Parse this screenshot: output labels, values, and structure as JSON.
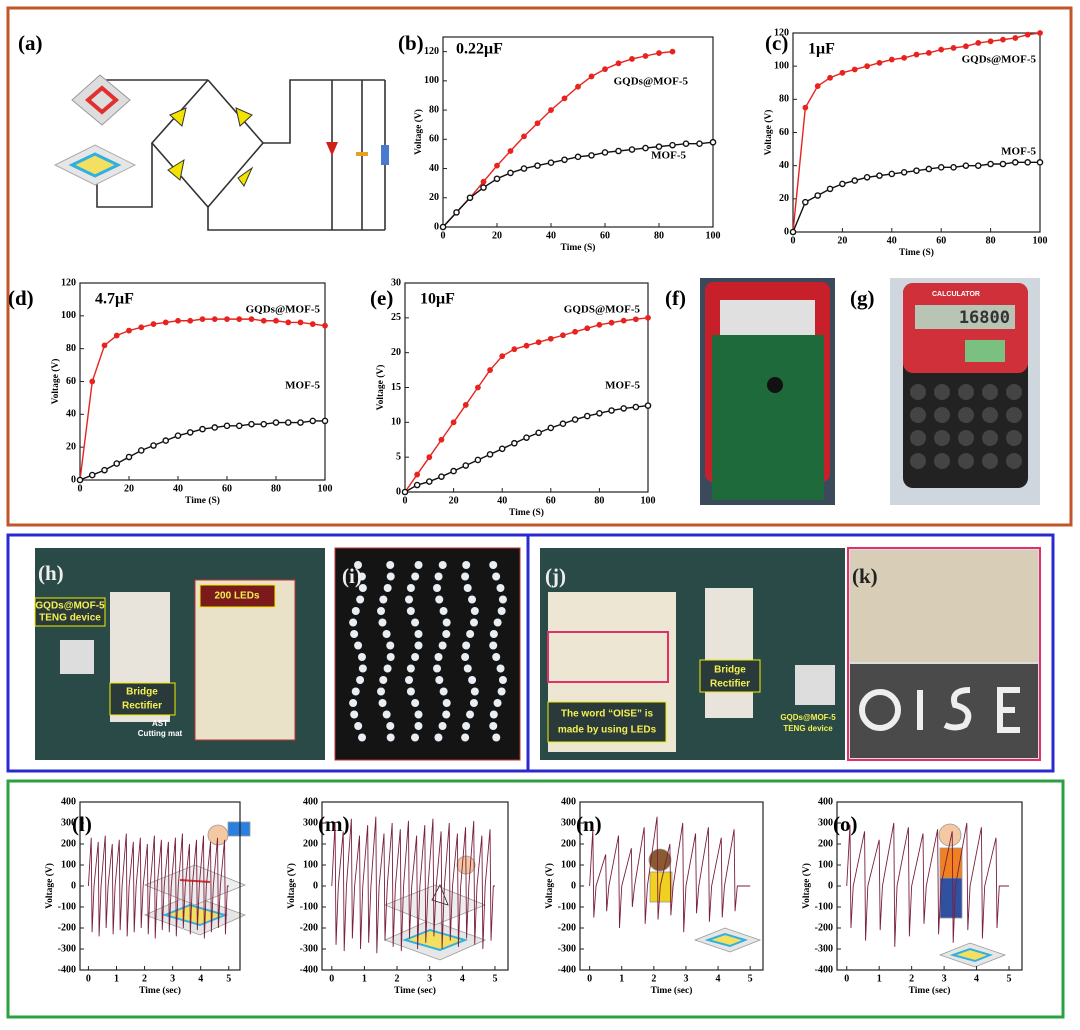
{
  "chart_data": [
    {
      "type": "line",
      "label": "(b)",
      "annotation": "0.22μF",
      "xlabel": "Time (S)",
      "ylabel": "Voltage (V)",
      "markers": true,
      "x": [
        0,
        5,
        10,
        15,
        20,
        25,
        30,
        35,
        40,
        45,
        50,
        55,
        60,
        65,
        70,
        75,
        80,
        85,
        90,
        95,
        100
      ],
      "xlim": [
        0,
        100
      ],
      "xticks": [
        0,
        20,
        40,
        60,
        80,
        100
      ],
      "ylim": [
        0,
        130
      ],
      "yticks": [
        0,
        20,
        40,
        60,
        80,
        100,
        120
      ],
      "series": [
        {
          "name": "GQDs@MOF-5",
          "color": "#e8231f",
          "values": [
            0,
            10,
            20,
            31,
            42,
            52,
            62,
            71,
            80,
            88,
            96,
            103,
            108,
            112,
            115,
            117,
            119,
            120,
            null,
            null,
            null
          ]
        },
        {
          "name": "MOF-5",
          "color": "#111111",
          "values": [
            0,
            10,
            20,
            27,
            33,
            37,
            40,
            42,
            44,
            46,
            48,
            49,
            51,
            52,
            53,
            54,
            55,
            56,
            57,
            57,
            58
          ]
        }
      ]
    },
    {
      "type": "line",
      "label": "(c)",
      "annotation": "1μF",
      "xlabel": "Time (S)",
      "ylabel": "Voltage (V)",
      "markers": true,
      "x": [
        0,
        5,
        10,
        15,
        20,
        25,
        30,
        35,
        40,
        45,
        50,
        55,
        60,
        65,
        70,
        75,
        80,
        85,
        90,
        95,
        100
      ],
      "xlim": [
        0,
        100
      ],
      "xticks": [
        0,
        20,
        40,
        60,
        80,
        100
      ],
      "ylim": [
        0,
        120
      ],
      "yticks": [
        0,
        20,
        40,
        60,
        80,
        100,
        120
      ],
      "series": [
        {
          "name": "GQDs@MOF-5",
          "color": "#e8231f",
          "values": [
            0,
            75,
            88,
            93,
            96,
            98,
            100,
            102,
            104,
            105,
            107,
            108,
            110,
            111,
            112,
            114,
            115,
            116,
            117,
            119,
            120
          ]
        },
        {
          "name": "MOF-5",
          "color": "#111111",
          "values": [
            0,
            18,
            22,
            26,
            29,
            31,
            33,
            34,
            35,
            36,
            37,
            38,
            39,
            39,
            40,
            40,
            41,
            41,
            42,
            42,
            42
          ]
        }
      ]
    },
    {
      "type": "line",
      "label": "(d)",
      "annotation": "4.7μF",
      "xlabel": "Time (S)",
      "ylabel": "Voltage (V)",
      "markers": true,
      "x": [
        0,
        5,
        10,
        15,
        20,
        25,
        30,
        35,
        40,
        45,
        50,
        55,
        60,
        65,
        70,
        75,
        80,
        85,
        90,
        95,
        100
      ],
      "xlim": [
        0,
        100
      ],
      "xticks": [
        0,
        20,
        40,
        60,
        80,
        100
      ],
      "ylim": [
        0,
        120
      ],
      "yticks": [
        0,
        20,
        40,
        60,
        80,
        100,
        120
      ],
      "series": [
        {
          "name": "GQDs@MOF-5",
          "color": "#e8231f",
          "values": [
            0,
            60,
            82,
            88,
            91,
            93,
            95,
            96,
            97,
            97,
            98,
            98,
            98,
            98,
            98,
            97,
            97,
            96,
            96,
            95,
            94
          ]
        },
        {
          "name": "MOF-5",
          "color": "#111111",
          "values": [
            0,
            3,
            6,
            10,
            14,
            18,
            21,
            24,
            27,
            29,
            31,
            32,
            33,
            33,
            34,
            34,
            35,
            35,
            35,
            36,
            36
          ]
        }
      ]
    },
    {
      "type": "line",
      "label": "(e)",
      "annotation": "10μF",
      "xlabel": "Time (S)",
      "ylabel": "Voltage (V)",
      "markers": true,
      "x": [
        0,
        5,
        10,
        15,
        20,
        25,
        30,
        35,
        40,
        45,
        50,
        55,
        60,
        65,
        70,
        75,
        80,
        85,
        90,
        95,
        100
      ],
      "xlim": [
        0,
        100
      ],
      "xticks": [
        0,
        20,
        40,
        60,
        80,
        100
      ],
      "ylim": [
        0,
        30
      ],
      "yticks": [
        0,
        5,
        10,
        15,
        20,
        25,
        30
      ],
      "series": [
        {
          "name": "GQDS@MOF-5",
          "color": "#e8231f",
          "values": [
            0,
            2.5,
            5,
            7.5,
            10,
            12.5,
            15,
            17.5,
            19.5,
            20.5,
            21,
            21.5,
            22,
            22.5,
            23,
            23.5,
            24,
            24.3,
            24.6,
            24.8,
            25
          ]
        },
        {
          "name": "MOF-5",
          "color": "#111111",
          "values": [
            0,
            1,
            1.5,
            2.2,
            3,
            3.8,
            4.6,
            5.4,
            6.2,
            7,
            7.8,
            8.5,
            9.2,
            9.8,
            10.4,
            10.9,
            11.3,
            11.7,
            12,
            12.2,
            12.4
          ]
        }
      ]
    },
    {
      "type": "line",
      "label": "(l)",
      "xlabel": "Time (sec)",
      "ylabel": "Voltage (V)",
      "markers": false,
      "x": [
        0,
        0.1,
        0.13,
        0.2,
        0.35,
        0.38,
        0.45,
        0.6,
        0.63,
        0.7,
        0.85,
        0.88,
        0.95,
        1.1,
        1.13,
        1.2,
        1.35,
        1.38,
        1.45,
        1.6,
        1.63,
        1.7,
        1.85,
        1.88,
        1.95,
        2.1,
        2.13,
        2.2,
        2.35,
        2.38,
        2.45,
        2.6,
        2.63,
        2.7,
        2.85,
        2.88,
        2.95,
        3.1,
        3.13,
        3.2,
        3.35,
        3.38,
        3.45,
        3.6,
        3.63,
        3.7,
        3.85,
        3.88,
        3.95,
        4.1,
        4.13,
        4.2,
        4.35,
        4.38,
        4.45,
        4.6,
        4.63,
        4.7,
        4.85,
        4.88,
        4.95,
        5
      ],
      "xlim": [
        -0.3,
        5.4
      ],
      "xticks": [
        0,
        1,
        2,
        3,
        4,
        5
      ],
      "ylim": [
        -400,
        400
      ],
      "yticks": [
        -400,
        -300,
        -200,
        -100,
        0,
        100,
        200,
        300,
        400
      ],
      "series": [
        {
          "color": "#7a1f3d",
          "values": [
            0,
            230,
            -220,
            0,
            210,
            -240,
            0,
            240,
            -200,
            0,
            200,
            -230,
            0,
            220,
            -210,
            0,
            250,
            -240,
            0,
            210,
            -220,
            0,
            230,
            -200,
            0,
            200,
            -230,
            0,
            240,
            -250,
            0,
            220,
            -210,
            0,
            210,
            -220,
            0,
            230,
            -240,
            0,
            250,
            -200,
            0,
            200,
            -230,
            0,
            220,
            -210,
            0,
            240,
            -250,
            0,
            210,
            -220,
            0,
            230,
            -200,
            0,
            220,
            -230,
            0,
            0
          ]
        }
      ]
    },
    {
      "type": "line",
      "label": "(m)",
      "xlabel": "Time (sec)",
      "ylabel": "Voltage (V)",
      "markers": false,
      "x": [
        0,
        0.1,
        0.13,
        0.2,
        0.35,
        0.38,
        0.45,
        0.6,
        0.63,
        0.7,
        0.85,
        0.88,
        0.95,
        1.1,
        1.13,
        1.2,
        1.35,
        1.38,
        1.45,
        1.6,
        1.63,
        1.7,
        1.85,
        1.88,
        1.95,
        2.1,
        2.13,
        2.2,
        2.35,
        2.38,
        2.45,
        2.6,
        2.63,
        2.7,
        2.85,
        2.88,
        2.95,
        3.1,
        3.13,
        3.2,
        3.35,
        3.38,
        3.45,
        3.6,
        3.63,
        3.7,
        3.85,
        3.88,
        3.95,
        4.1,
        4.13,
        4.2,
        4.35,
        4.38,
        4.45,
        4.6,
        4.63,
        4.7,
        4.85,
        4.88,
        4.95,
        5
      ],
      "xlim": [
        -0.3,
        5.4
      ],
      "xticks": [
        0,
        1,
        2,
        3,
        4,
        5
      ],
      "ylim": [
        -400,
        400
      ],
      "yticks": [
        -400,
        -300,
        -200,
        -100,
        0,
        100,
        200,
        300,
        400
      ],
      "series": [
        {
          "color": "#7a1f3d",
          "values": [
            0,
            300,
            -280,
            0,
            260,
            -310,
            0,
            320,
            -250,
            0,
            240,
            -300,
            0,
            290,
            -270,
            0,
            330,
            -320,
            0,
            250,
            -260,
            0,
            300,
            -290,
            0,
            270,
            -310,
            0,
            310,
            -250,
            0,
            240,
            -300,
            0,
            290,
            -270,
            0,
            320,
            -240,
            0,
            260,
            -300,
            0,
            300,
            -260,
            0,
            250,
            -290,
            0,
            280,
            -250,
            0,
            310,
            -280,
            0,
            240,
            -300,
            0,
            270,
            -260,
            0,
            0
          ]
        }
      ]
    },
    {
      "type": "line",
      "label": "(n)",
      "xlabel": "Time (sec)",
      "ylabel": "Voltage (V)",
      "markers": false,
      "x": [
        0,
        0.1,
        0.13,
        0.2,
        0.5,
        0.53,
        0.6,
        0.9,
        0.93,
        1.0,
        1.3,
        1.33,
        1.4,
        1.7,
        1.73,
        1.8,
        2.1,
        2.13,
        2.2,
        2.5,
        2.53,
        2.6,
        2.9,
        2.93,
        3.0,
        3.3,
        3.33,
        3.4,
        3.7,
        3.73,
        3.8,
        4.1,
        4.13,
        4.2,
        4.5,
        4.53,
        4.6,
        5
      ],
      "xlim": [
        -0.3,
        5.4
      ],
      "xticks": [
        0,
        1,
        2,
        3,
        4,
        5
      ],
      "ylim": [
        -400,
        400
      ],
      "yticks": [
        -400,
        -300,
        -200,
        -100,
        0,
        100,
        200,
        300,
        400
      ],
      "series": [
        {
          "color": "#7a1f3d",
          "values": [
            0,
            270,
            -150,
            0,
            150,
            -120,
            0,
            240,
            -200,
            0,
            180,
            -100,
            0,
            280,
            -180,
            0,
            330,
            -160,
            0,
            200,
            -140,
            0,
            300,
            -220,
            0,
            250,
            -130,
            0,
            280,
            -170,
            0,
            230,
            -150,
            0,
            270,
            -120,
            0,
            0
          ]
        }
      ]
    },
    {
      "type": "line",
      "label": "(o)",
      "xlabel": "Time (sec)",
      "ylabel": "Voltage (V)",
      "markers": false,
      "x": [
        0,
        0.1,
        0.13,
        0.2,
        0.55,
        0.58,
        0.65,
        1.0,
        1.03,
        1.1,
        1.45,
        1.48,
        1.55,
        1.9,
        1.93,
        2.0,
        2.35,
        2.38,
        2.45,
        2.8,
        2.83,
        2.9,
        3.25,
        3.28,
        3.35,
        3.7,
        3.73,
        3.8,
        4.15,
        4.18,
        4.25,
        4.6,
        4.63,
        4.7,
        5
      ],
      "xlim": [
        -0.3,
        5.4
      ],
      "xticks": [
        0,
        1,
        2,
        3,
        4,
        5
      ],
      "ylim": [
        -400,
        400
      ],
      "yticks": [
        -400,
        -300,
        -200,
        -100,
        0,
        100,
        200,
        300,
        400
      ],
      "series": [
        {
          "color": "#7a1f3d",
          "values": [
            0,
            290,
            -200,
            0,
            260,
            -260,
            0,
            220,
            -210,
            0,
            300,
            -290,
            0,
            280,
            -240,
            0,
            250,
            -180,
            0,
            270,
            -230,
            0,
            260,
            -270,
            0,
            300,
            -210,
            0,
            280,
            -250,
            0,
            230,
            -200,
            0,
            0
          ]
        }
      ]
    }
  ],
  "panels": {
    "a": "(a)",
    "f": "(f)",
    "g": {
      "label": "(g)",
      "brand": "CALCULATOR",
      "display": "16800"
    },
    "h": {
      "label": "(h)",
      "device": [
        "GQDs@MOF-5",
        "TENG device"
      ],
      "leds": "200 LEDs",
      "rectifier": [
        "Bridge",
        "Rectifier"
      ],
      "mat": [
        "AST",
        "Cutting mat"
      ]
    },
    "i": "(i)",
    "j": {
      "label": "(j)",
      "caption": [
        "The word “OISE” is",
        "made by using LEDs"
      ],
      "rectifier": [
        "Bridge",
        "Rectifier"
      ],
      "device": [
        "GQDs@MOF-5",
        "TENG device"
      ]
    },
    "k": "(k)"
  }
}
